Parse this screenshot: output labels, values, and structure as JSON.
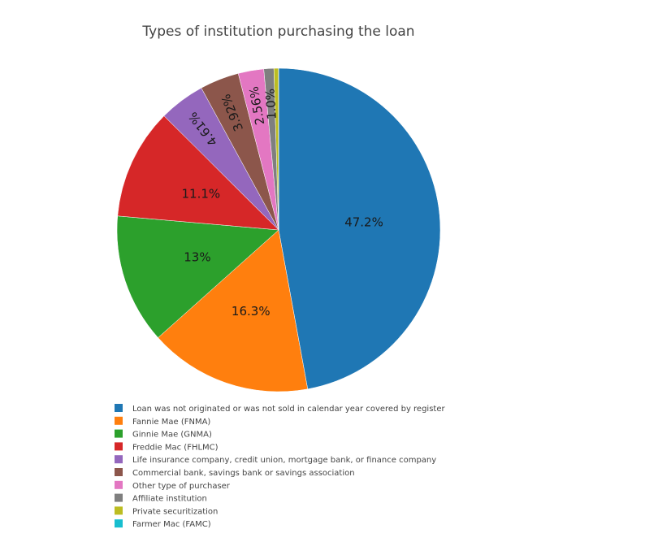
{
  "chart_data": {
    "type": "pie",
    "title": "Types of institution purchasing the loan",
    "slices": [
      {
        "label": "Loan was not originated or was not sold in calendar year covered by register",
        "value": 47.2,
        "text": "47.2%",
        "color": "#1f77b4"
      },
      {
        "label": "Fannie Mae (FNMA)",
        "value": 16.3,
        "text": "16.3%",
        "color": "#ff7f0e"
      },
      {
        "label": "Ginnie Mae (GNMA)",
        "value": 13.0,
        "text": "13%",
        "color": "#2ca02c"
      },
      {
        "label": "Freddie Mac (FHLMC)",
        "value": 11.1,
        "text": "11.1%",
        "color": "#d62728"
      },
      {
        "label": "Life insurance company, credit union, mortgage bank, or finance company",
        "value": 4.61,
        "text": "4.61%",
        "color": "#9467bd"
      },
      {
        "label": "Commercial bank, savings bank or savings association",
        "value": 3.92,
        "text": "3.92%",
        "color": "#8c564b"
      },
      {
        "label": "Other type of purchaser",
        "value": 2.56,
        "text": "2.56%",
        "color": "#e377c2"
      },
      {
        "label": "Affiliate institution",
        "value": 1.0,
        "text": "1.0%",
        "color": "#7f7f7f"
      },
      {
        "label": "Private securitization",
        "value": 0.45,
        "text": "",
        "color": "#bcbd22"
      },
      {
        "label": "Farmer Mac (FAMC)",
        "value": 0.02,
        "text": "",
        "color": "#17becf"
      }
    ],
    "legend_position": "bottom-left"
  }
}
